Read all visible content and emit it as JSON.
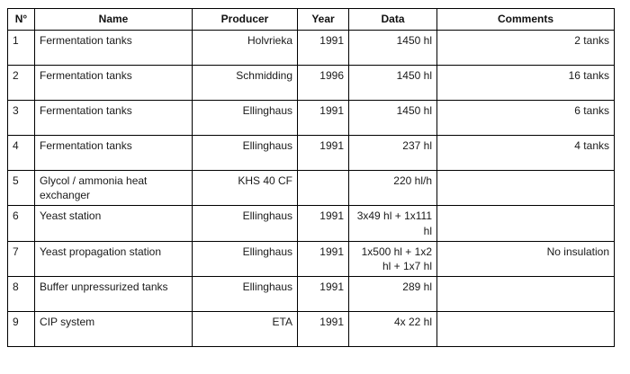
{
  "table": {
    "columns": [
      {
        "key": "no",
        "label": "N°"
      },
      {
        "key": "name",
        "label": "Name"
      },
      {
        "key": "producer",
        "label": "Producer"
      },
      {
        "key": "year",
        "label": "Year"
      },
      {
        "key": "data",
        "label": "Data"
      },
      {
        "key": "comments",
        "label": "Comments"
      }
    ],
    "rows": [
      {
        "no": "1",
        "name": "Fermentation tanks",
        "producer": "Holvrieka",
        "year": "1991",
        "data": "1450 hl",
        "comments": "2 tanks"
      },
      {
        "no": "2",
        "name": "Fermentation tanks",
        "producer": "Schmidding",
        "year": "1996",
        "data": "1450 hl",
        "comments": "16 tanks"
      },
      {
        "no": "3",
        "name": "Fermentation tanks",
        "producer": "Ellinghaus",
        "year": "1991",
        "data": "1450 hl",
        "comments": "6 tanks"
      },
      {
        "no": "4",
        "name": "Fermentation tanks",
        "producer": "Ellinghaus",
        "year": "1991",
        "data": "237 hl",
        "comments": "4 tanks"
      },
      {
        "no": "5",
        "name": "Glycol / ammonia heat exchanger",
        "producer": "KHS 40 CF",
        "year": "",
        "data": "220 hl/h",
        "comments": ""
      },
      {
        "no": "6",
        "name": "Yeast station",
        "producer": "Ellinghaus",
        "year": "1991",
        "data": "3x49 hl + 1x111 hl",
        "comments": ""
      },
      {
        "no": "7",
        "name": "Yeast propagation station",
        "producer": "Ellinghaus",
        "year": "1991",
        "data": "1x500 hl + 1x2 hl + 1x7 hl",
        "comments": "No insulation"
      },
      {
        "no": "8",
        "name": "Buffer unpressurized tanks",
        "producer": "Ellinghaus",
        "year": "1991",
        "data": "289 hl",
        "comments": ""
      },
      {
        "no": "9",
        "name": "CIP system",
        "producer": "ETA",
        "year": "1991",
        "data": "4x 22 hl",
        "comments": ""
      }
    ],
    "colors": {
      "border": "#000000",
      "text": "#1a1a1a",
      "background": "#ffffff"
    }
  }
}
